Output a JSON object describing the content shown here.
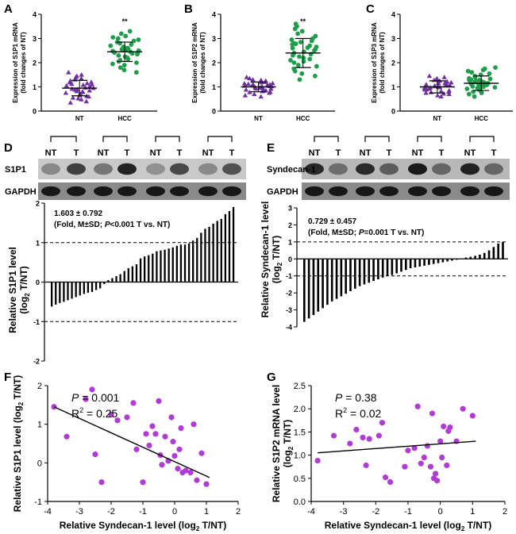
{
  "panel_labels": [
    "A",
    "B",
    "C",
    "D",
    "E",
    "F",
    "G"
  ],
  "colors": {
    "purple": "#7030A0",
    "green": "#1E9E4A",
    "magenta": "#B23BD6",
    "black": "#000000"
  },
  "chart_data": [
    {
      "panel": "A",
      "type": "scatter",
      "ylabel": [
        "Expression of S1P1 mRNA",
        "(fold changes of NT)"
      ],
      "ylim": [
        0,
        4
      ],
      "yticks": [
        0,
        1,
        2,
        3,
        4
      ],
      "categories": [
        "NT",
        "HCC"
      ],
      "significance": "**",
      "series": [
        {
          "name": "NT",
          "marker": "triangle",
          "color": "#7030A0",
          "mean": 0.95,
          "sd": 0.32,
          "values": [
            0.35,
            0.4,
            0.48,
            0.52,
            0.55,
            0.6,
            0.62,
            0.65,
            0.7,
            0.72,
            0.75,
            0.78,
            0.8,
            0.82,
            0.85,
            0.88,
            0.9,
            0.92,
            0.95,
            0.97,
            1.0,
            1.02,
            1.05,
            1.08,
            1.1,
            1.12,
            1.15,
            1.18,
            1.2,
            1.25,
            1.3,
            1.35,
            1.4,
            1.45,
            1.5,
            1.6
          ]
        },
        {
          "name": "HCC",
          "marker": "circle",
          "color": "#1E9E4A",
          "mean": 2.45,
          "sd": 0.4,
          "values": [
            1.6,
            1.7,
            1.8,
            1.9,
            1.95,
            2.0,
            2.05,
            2.1,
            2.15,
            2.2,
            2.25,
            2.3,
            2.35,
            2.4,
            2.42,
            2.45,
            2.48,
            2.5,
            2.52,
            2.55,
            2.6,
            2.62,
            2.65,
            2.7,
            2.75,
            2.8,
            2.85,
            2.9,
            2.95,
            3.0,
            3.05,
            3.1,
            3.2,
            3.3,
            2.38,
            2.58
          ]
        }
      ]
    },
    {
      "panel": "B",
      "type": "scatter",
      "ylabel": [
        "Expression of S1P2 mRNA",
        "(fold changes of NT)"
      ],
      "ylim": [
        0,
        4
      ],
      "yticks": [
        0,
        1,
        2,
        3,
        4
      ],
      "categories": [
        "NT",
        "HCC"
      ],
      "significance": "**",
      "series": [
        {
          "name": "NT",
          "marker": "triangle",
          "color": "#7030A0",
          "mean": 1.0,
          "sd": 0.2,
          "values": [
            0.6,
            0.65,
            0.7,
            0.75,
            0.78,
            0.8,
            0.82,
            0.85,
            0.88,
            0.9,
            0.92,
            0.95,
            0.97,
            1.0,
            1.0,
            1.02,
            1.05,
            1.05,
            1.08,
            1.1,
            1.1,
            1.12,
            1.15,
            1.18,
            1.2,
            1.22,
            1.25,
            1.28,
            1.3,
            1.35,
            1.4,
            0.98,
            1.03,
            0.93,
            1.07,
            1.14
          ]
        },
        {
          "name": "HCC",
          "marker": "circle",
          "color": "#1E9E4A",
          "mean": 2.4,
          "sd": 0.6,
          "values": [
            1.3,
            1.45,
            1.55,
            1.65,
            1.75,
            1.85,
            1.9,
            2.0,
            2.05,
            2.1,
            2.2,
            2.25,
            2.3,
            2.35,
            2.4,
            2.45,
            2.5,
            2.55,
            2.6,
            2.65,
            2.7,
            2.75,
            2.8,
            2.85,
            2.9,
            2.95,
            3.0,
            3.1,
            3.2,
            3.3,
            3.4,
            3.5,
            3.6,
            2.15,
            2.62,
            2.78
          ]
        }
      ]
    },
    {
      "panel": "C",
      "type": "scatter",
      "ylabel": [
        "Expression of S1P3 mRNA",
        "(fold changes of NT)"
      ],
      "ylim": [
        0,
        4
      ],
      "yticks": [
        0,
        1,
        2,
        3,
        4
      ],
      "categories": [
        "NT",
        "HCC"
      ],
      "significance": "",
      "series": [
        {
          "name": "NT",
          "marker": "triangle",
          "color": "#7030A0",
          "mean": 1.0,
          "sd": 0.25,
          "values": [
            0.6,
            0.65,
            0.7,
            0.72,
            0.75,
            0.78,
            0.8,
            0.82,
            0.85,
            0.88,
            0.9,
            0.92,
            0.95,
            0.97,
            1.0,
            1.0,
            1.02,
            1.05,
            1.07,
            1.1,
            1.12,
            1.15,
            1.18,
            1.2,
            1.22,
            1.25,
            1.28,
            1.3,
            1.35,
            1.4,
            1.45,
            0.98,
            1.03,
            0.93,
            1.08,
            1.16
          ]
        },
        {
          "name": "HCC",
          "marker": "circle",
          "color": "#1E9E4A",
          "mean": 1.15,
          "sd": 0.3,
          "values": [
            0.6,
            0.7,
            0.75,
            0.8,
            0.85,
            0.9,
            0.92,
            0.95,
            0.98,
            1.0,
            1.02,
            1.05,
            1.08,
            1.1,
            1.12,
            1.15,
            1.18,
            1.2,
            1.22,
            1.25,
            1.28,
            1.3,
            1.35,
            1.4,
            1.45,
            1.5,
            1.55,
            1.6,
            1.65,
            1.7,
            1.75,
            1.8,
            1.1,
            1.27,
            1.03,
            1.33
          ]
        }
      ]
    },
    {
      "panel": "D",
      "type": "bar",
      "blot": {
        "lane_labels": [
          "NT",
          "T",
          "NT",
          "T",
          "NT",
          "T",
          "NT",
          "T"
        ],
        "rows": [
          "S1P1",
          "GAPDH"
        ]
      },
      "ylabel": [
        "Relative S1P1 level",
        "(log",
        "2",
        " T/NT)"
      ],
      "ylim": [
        -2,
        2
      ],
      "yticks": [
        -2,
        -1,
        0,
        1,
        2
      ],
      "reference_lines": [
        1,
        -1
      ],
      "annotation_lines": [
        "1.603 ± 0.792",
        "(Fold, M±SD; ",
        "P",
        "<0.001 T vs. NT)"
      ],
      "values": [
        -0.62,
        -0.57,
        -0.53,
        -0.5,
        -0.46,
        -0.42,
        -0.38,
        -0.34,
        -0.3,
        -0.27,
        -0.25,
        -0.2,
        -0.16,
        -0.05,
        0.05,
        0.1,
        0.15,
        0.2,
        0.28,
        0.35,
        0.4,
        0.45,
        0.6,
        0.65,
        0.68,
        0.72,
        0.78,
        0.8,
        0.82,
        0.85,
        0.88,
        0.92,
        0.95,
        0.95,
        0.98,
        1.05,
        1.12,
        1.25,
        1.35,
        1.4,
        1.48,
        1.55,
        1.6,
        1.72,
        1.8,
        1.9
      ]
    },
    {
      "panel": "E",
      "type": "bar",
      "blot": {
        "lane_labels": [
          "NT",
          "T",
          "NT",
          "T",
          "NT",
          "T",
          "NT",
          "T"
        ],
        "rows": [
          "Syndecan-1",
          "GAPDH"
        ]
      },
      "ylabel": [
        "Relative Syndecan-1 level",
        "(log",
        "2",
        " T/NT)"
      ],
      "ylim": [
        -4,
        3
      ],
      "yticks": [
        -4,
        -3,
        -2,
        -1,
        0,
        1,
        2,
        3
      ],
      "reference_lines": [
        1,
        -1
      ],
      "annotation_lines": [
        "0.729 ± 0.457",
        "(Fold, M±SD; ",
        "P",
        "=0.001 T vs. NT)"
      ],
      "values": [
        -3.7,
        -3.5,
        -3.3,
        -3.1,
        -2.9,
        -2.7,
        -2.5,
        -2.35,
        -2.2,
        -2.05,
        -1.9,
        -1.75,
        -1.6,
        -1.5,
        -1.4,
        -1.3,
        -1.2,
        -1.1,
        -1.0,
        -0.95,
        -0.85,
        -0.75,
        -0.65,
        -0.55,
        -0.5,
        -0.45,
        -0.4,
        -0.35,
        -0.3,
        -0.25,
        -0.2,
        -0.15,
        -0.1,
        -0.05,
        0.02,
        0.08,
        0.12,
        0.18,
        0.25,
        0.35,
        0.5,
        0.7,
        0.9,
        1.0
      ]
    },
    {
      "panel": "F",
      "type": "scatter",
      "xlabel": [
        "Relative Syndecan-1 level (log",
        "2",
        " T/NT)"
      ],
      "ylabel": [
        "Relative S1P1 level (log",
        "2",
        " T/NT)"
      ],
      "xlim": [
        -4,
        2
      ],
      "xticks": [
        -4,
        -3,
        -2,
        -1,
        0,
        1,
        2
      ],
      "ylim": [
        -1,
        2
      ],
      "yticks": [
        -1,
        0,
        1,
        2
      ],
      "p_text": "= 0.001",
      "r2_text": "= 0.25",
      "fit": {
        "x": [
          -3.8,
          1.1
        ],
        "y": [
          1.45,
          -0.38
        ]
      },
      "points": [
        {
          "x": -3.8,
          "y": 1.45
        },
        {
          "x": -3.4,
          "y": 0.68
        },
        {
          "x": -2.8,
          "y": 1.65
        },
        {
          "x": -2.6,
          "y": 1.9
        },
        {
          "x": -2.5,
          "y": 0.22
        },
        {
          "x": -2.3,
          "y": -0.5
        },
        {
          "x": -2.0,
          "y": 1.25
        },
        {
          "x": -1.8,
          "y": 1.1
        },
        {
          "x": -1.5,
          "y": 1.18
        },
        {
          "x": -1.3,
          "y": 1.55
        },
        {
          "x": -1.2,
          "y": 0.35
        },
        {
          "x": -1.0,
          "y": -0.5
        },
        {
          "x": -0.9,
          "y": 0.75
        },
        {
          "x": -0.8,
          "y": 0.45
        },
        {
          "x": -0.7,
          "y": 0.95
        },
        {
          "x": -0.6,
          "y": 0.75
        },
        {
          "x": -0.5,
          "y": 1.6
        },
        {
          "x": -0.45,
          "y": 0.2
        },
        {
          "x": -0.4,
          "y": -0.05
        },
        {
          "x": -0.3,
          "y": 0.68
        },
        {
          "x": -0.2,
          "y": 0.05
        },
        {
          "x": -0.1,
          "y": 1.18
        },
        {
          "x": -0.05,
          "y": 0.55
        },
        {
          "x": 0.0,
          "y": 0.18
        },
        {
          "x": 0.1,
          "y": -0.15
        },
        {
          "x": 0.2,
          "y": 0.9
        },
        {
          "x": 0.25,
          "y": -0.25
        },
        {
          "x": 0.35,
          "y": -0.2
        },
        {
          "x": 0.5,
          "y": -0.25
        },
        {
          "x": 0.6,
          "y": 1.0
        },
        {
          "x": 0.7,
          "y": -0.45
        },
        {
          "x": 0.85,
          "y": 0.25
        },
        {
          "x": 1.0,
          "y": -0.55
        },
        {
          "x": 0.15,
          "y": 0.35
        }
      ]
    },
    {
      "panel": "G",
      "type": "scatter",
      "xlabel": [
        "Relative Syndecan-1 level (log",
        "2",
        " T/NT)"
      ],
      "ylabel": [
        "Relative S1P2 mRNA level",
        "(log",
        "2",
        " T/NT)"
      ],
      "xlim": [
        -4,
        2
      ],
      "xticks": [
        -4,
        -3,
        -2,
        -1,
        0,
        1,
        2
      ],
      "ylim": [
        0.0,
        2.5
      ],
      "yticks": [
        0.0,
        0.5,
        1.0,
        1.5,
        2.0,
        2.5
      ],
      "p_text": "= 0.38",
      "r2_text": "= 0.02",
      "fit": {
        "x": [
          -3.8,
          1.1
        ],
        "y": [
          1.05,
          1.3
        ]
      },
      "points": [
        {
          "x": -3.8,
          "y": 0.88
        },
        {
          "x": -3.3,
          "y": 1.42
        },
        {
          "x": -2.8,
          "y": 1.25
        },
        {
          "x": -2.6,
          "y": 1.55
        },
        {
          "x": -2.4,
          "y": 1.38
        },
        {
          "x": -2.3,
          "y": 0.78
        },
        {
          "x": -2.2,
          "y": 1.35
        },
        {
          "x": -1.9,
          "y": 1.42
        },
        {
          "x": -1.8,
          "y": 1.7
        },
        {
          "x": -1.7,
          "y": 0.52
        },
        {
          "x": -1.55,
          "y": 0.42
        },
        {
          "x": -1.1,
          "y": 0.75
        },
        {
          "x": -1.0,
          "y": 1.1
        },
        {
          "x": -0.8,
          "y": 1.15
        },
        {
          "x": -0.7,
          "y": 2.05
        },
        {
          "x": -0.6,
          "y": 0.82
        },
        {
          "x": -0.5,
          "y": 0.95
        },
        {
          "x": -0.4,
          "y": 1.2
        },
        {
          "x": -0.3,
          "y": 0.75
        },
        {
          "x": -0.25,
          "y": 1.9
        },
        {
          "x": -0.2,
          "y": 0.5
        },
        {
          "x": -0.15,
          "y": 0.6
        },
        {
          "x": -0.1,
          "y": 0.45
        },
        {
          "x": 0.0,
          "y": 1.3
        },
        {
          "x": 0.05,
          "y": 0.95
        },
        {
          "x": 0.1,
          "y": 1.62
        },
        {
          "x": 0.2,
          "y": 0.78
        },
        {
          "x": 0.3,
          "y": 1.6
        },
        {
          "x": 0.5,
          "y": 1.3
        },
        {
          "x": 0.7,
          "y": 2.0
        },
        {
          "x": 1.0,
          "y": 1.85
        },
        {
          "x": 0.25,
          "y": 1.52
        }
      ]
    }
  ]
}
